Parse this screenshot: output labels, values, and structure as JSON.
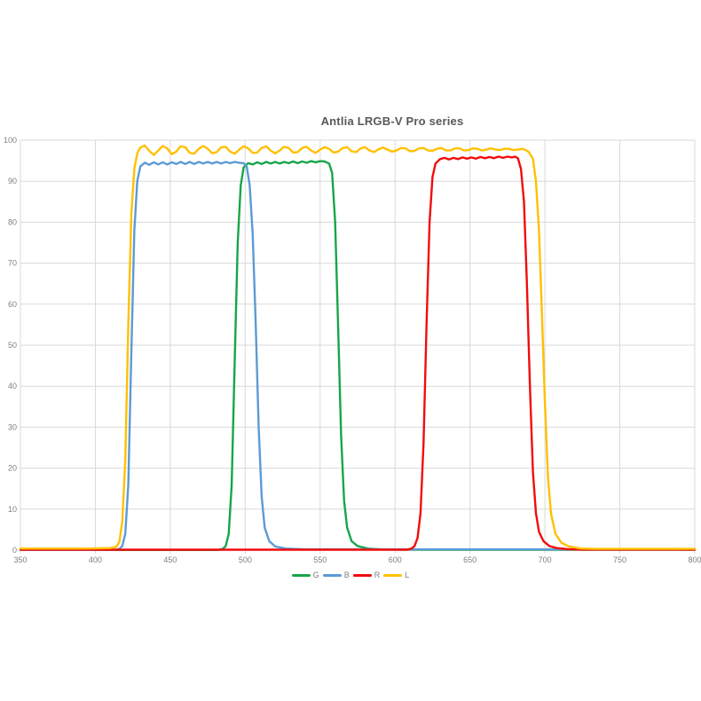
{
  "chart_data": {
    "type": "line",
    "title": "Antlia LRGB-V Pro series",
    "xlabel": "",
    "ylabel": "",
    "xlim": [
      350,
      800
    ],
    "ylim": [
      0,
      100
    ],
    "x_ticks": [
      350,
      400,
      450,
      500,
      550,
      600,
      650,
      700,
      750,
      800
    ],
    "y_ticks": [
      0,
      10,
      20,
      30,
      40,
      50,
      60,
      70,
      80,
      90,
      100
    ],
    "grid": true,
    "legend_position": "bottom",
    "colors": {
      "gridline": "#d9d9d9",
      "axis_line": "#c9c9c9",
      "tick_label": "#7f7f7f",
      "title": "#595959"
    },
    "series": [
      {
        "name": "G",
        "color": "#17a54a",
        "points": [
          [
            350,
            0.05
          ],
          [
            482,
            0.05
          ],
          [
            485,
            0.3
          ],
          [
            487,
            1
          ],
          [
            489,
            4
          ],
          [
            491,
            16
          ],
          [
            493,
            46
          ],
          [
            495,
            75
          ],
          [
            497,
            89
          ],
          [
            499,
            93.4
          ],
          [
            502,
            94.4
          ],
          [
            505,
            94.1
          ],
          [
            508,
            94.6
          ],
          [
            511,
            94.2
          ],
          [
            514,
            94.7
          ],
          [
            517,
            94.3
          ],
          [
            520,
            94.7
          ],
          [
            523,
            94.3
          ],
          [
            526,
            94.7
          ],
          [
            529,
            94.4
          ],
          [
            532,
            94.8
          ],
          [
            535,
            94.4
          ],
          [
            538,
            94.8
          ],
          [
            541,
            94.5
          ],
          [
            544,
            94.9
          ],
          [
            547,
            94.6
          ],
          [
            550,
            94.9
          ],
          [
            553,
            94.8
          ],
          [
            556,
            94.3
          ],
          [
            558,
            92
          ],
          [
            560,
            80
          ],
          [
            562,
            55
          ],
          [
            564,
            28
          ],
          [
            566,
            12
          ],
          [
            568,
            5.5
          ],
          [
            571,
            2.2
          ],
          [
            575,
            1
          ],
          [
            582,
            0.4
          ],
          [
            592,
            0.15
          ],
          [
            620,
            0.1
          ],
          [
            800,
            0.1
          ]
        ]
      },
      {
        "name": "B",
        "color": "#5b9bd5",
        "points": [
          [
            350,
            0.05
          ],
          [
            413,
            0.05
          ],
          [
            416,
            0.3
          ],
          [
            418,
            1
          ],
          [
            420,
            4
          ],
          [
            422,
            16
          ],
          [
            424,
            48
          ],
          [
            426,
            78
          ],
          [
            428,
            90
          ],
          [
            430,
            93.6
          ],
          [
            433,
            94.5
          ],
          [
            436,
            94.0
          ],
          [
            439,
            94.6
          ],
          [
            442,
            94.1
          ],
          [
            445,
            94.6
          ],
          [
            448,
            94.1
          ],
          [
            451,
            94.6
          ],
          [
            454,
            94.2
          ],
          [
            457,
            94.7
          ],
          [
            460,
            94.2
          ],
          [
            463,
            94.7
          ],
          [
            466,
            94.2
          ],
          [
            469,
            94.7
          ],
          [
            472,
            94.3
          ],
          [
            475,
            94.7
          ],
          [
            478,
            94.3
          ],
          [
            481,
            94.7
          ],
          [
            484,
            94.3
          ],
          [
            487,
            94.7
          ],
          [
            490,
            94.4
          ],
          [
            493,
            94.7
          ],
          [
            496,
            94.5
          ],
          [
            499,
            94.4
          ],
          [
            501,
            93.6
          ],
          [
            503,
            89
          ],
          [
            505,
            77
          ],
          [
            507,
            55
          ],
          [
            509,
            30
          ],
          [
            511,
            13
          ],
          [
            513,
            5.5
          ],
          [
            516,
            2.2
          ],
          [
            520,
            0.9
          ],
          [
            527,
            0.4
          ],
          [
            540,
            0.2
          ],
          [
            800,
            0.2
          ]
        ]
      },
      {
        "name": "R",
        "color": "#f20c0c",
        "points": [
          [
            350,
            0.1
          ],
          [
            608,
            0.1
          ],
          [
            611,
            0.4
          ],
          [
            613,
            1
          ],
          [
            615,
            3
          ],
          [
            617,
            9
          ],
          [
            619,
            26
          ],
          [
            621,
            55
          ],
          [
            623,
            80
          ],
          [
            625,
            91
          ],
          [
            627,
            94.3
          ],
          [
            630,
            95.4
          ],
          [
            633,
            95.7
          ],
          [
            636,
            95.3
          ],
          [
            639,
            95.7
          ],
          [
            642,
            95.4
          ],
          [
            645,
            95.8
          ],
          [
            648,
            95.5
          ],
          [
            651,
            95.8
          ],
          [
            654,
            95.5
          ],
          [
            657,
            95.9
          ],
          [
            660,
            95.6
          ],
          [
            663,
            95.9
          ],
          [
            666,
            95.6
          ],
          [
            669,
            96.0
          ],
          [
            672,
            95.7
          ],
          [
            675,
            96.0
          ],
          [
            678,
            95.8
          ],
          [
            680,
            96.0
          ],
          [
            682,
            95.6
          ],
          [
            684,
            93
          ],
          [
            686,
            85
          ],
          [
            688,
            65
          ],
          [
            690,
            40
          ],
          [
            692,
            19
          ],
          [
            694,
            9
          ],
          [
            696,
            4.5
          ],
          [
            699,
            2.2
          ],
          [
            703,
            1
          ],
          [
            708,
            0.5
          ],
          [
            715,
            0.25
          ],
          [
            724,
            0.12
          ],
          [
            800,
            0.1
          ]
        ]
      },
      {
        "name": "L",
        "color": "#ffc000",
        "points": [
          [
            350,
            0.4
          ],
          [
            395,
            0.4
          ],
          [
            410,
            0.5
          ],
          [
            414,
            0.8
          ],
          [
            416,
            2
          ],
          [
            418,
            7
          ],
          [
            420,
            22
          ],
          [
            422,
            55
          ],
          [
            424,
            82
          ],
          [
            426,
            93
          ],
          [
            428,
            96.8
          ],
          [
            430,
            98.2
          ],
          [
            433,
            98.7
          ],
          [
            436,
            97.4
          ],
          [
            439,
            96.4
          ],
          [
            442,
            97.5
          ],
          [
            445,
            98.6
          ],
          [
            448,
            98.0
          ],
          [
            451,
            96.6
          ],
          [
            454,
            97.2
          ],
          [
            457,
            98.5
          ],
          [
            460,
            98.3
          ],
          [
            463,
            96.9
          ],
          [
            466,
            96.7
          ],
          [
            469,
            97.9
          ],
          [
            472,
            98.6
          ],
          [
            475,
            97.9
          ],
          [
            478,
            96.8
          ],
          [
            481,
            97.1
          ],
          [
            484,
            98.3
          ],
          [
            487,
            98.4
          ],
          [
            490,
            97.2
          ],
          [
            493,
            96.7
          ],
          [
            496,
            97.7
          ],
          [
            499,
            98.5
          ],
          [
            502,
            98.0
          ],
          [
            505,
            96.9
          ],
          [
            508,
            97.0
          ],
          [
            511,
            98.1
          ],
          [
            514,
            98.5
          ],
          [
            517,
            97.5
          ],
          [
            520,
            96.8
          ],
          [
            523,
            97.5
          ],
          [
            526,
            98.4
          ],
          [
            529,
            98.1
          ],
          [
            532,
            97.0
          ],
          [
            535,
            97.1
          ],
          [
            538,
            98.1
          ],
          [
            541,
            98.4
          ],
          [
            544,
            97.5
          ],
          [
            547,
            96.9
          ],
          [
            550,
            97.7
          ],
          [
            553,
            98.3
          ],
          [
            556,
            97.9
          ],
          [
            559,
            97.0
          ],
          [
            562,
            97.2
          ],
          [
            565,
            98.1
          ],
          [
            568,
            98.3
          ],
          [
            571,
            97.3
          ],
          [
            574,
            97.1
          ],
          [
            577,
            98.0
          ],
          [
            580,
            98.3
          ],
          [
            583,
            97.5
          ],
          [
            586,
            97.1
          ],
          [
            589,
            97.8
          ],
          [
            592,
            98.2
          ],
          [
            595,
            97.7
          ],
          [
            598,
            97.2
          ],
          [
            601,
            97.5
          ],
          [
            604,
            98.1
          ],
          [
            607,
            98.0
          ],
          [
            610,
            97.3
          ],
          [
            613,
            97.4
          ],
          [
            616,
            98.0
          ],
          [
            619,
            98.1
          ],
          [
            622,
            97.5
          ],
          [
            625,
            97.4
          ],
          [
            628,
            97.9
          ],
          [
            631,
            98.1
          ],
          [
            634,
            97.5
          ],
          [
            637,
            97.5
          ],
          [
            640,
            98.0
          ],
          [
            643,
            98.0
          ],
          [
            646,
            97.5
          ],
          [
            649,
            97.6
          ],
          [
            652,
            98.0
          ],
          [
            655,
            97.9
          ],
          [
            658,
            97.5
          ],
          [
            661,
            97.7
          ],
          [
            664,
            98.0
          ],
          [
            667,
            97.7
          ],
          [
            670,
            97.6
          ],
          [
            673,
            97.9
          ],
          [
            676,
            97.9
          ],
          [
            679,
            97.6
          ],
          [
            682,
            97.7
          ],
          [
            685,
            97.9
          ],
          [
            687,
            97.6
          ],
          [
            689,
            97.2
          ],
          [
            692,
            95.5
          ],
          [
            694,
            90
          ],
          [
            696,
            78
          ],
          [
            698,
            58
          ],
          [
            700,
            36
          ],
          [
            702,
            18
          ],
          [
            704,
            9
          ],
          [
            707,
            4
          ],
          [
            711,
            1.8
          ],
          [
            716,
            0.9
          ],
          [
            724,
            0.4
          ],
          [
            734,
            0.3
          ],
          [
            800,
            0.3
          ]
        ]
      }
    ]
  }
}
